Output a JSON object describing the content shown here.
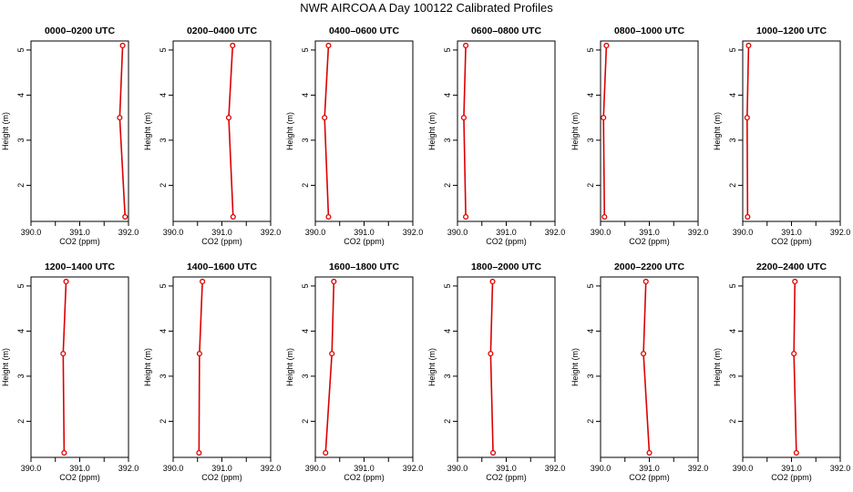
{
  "title": "NWR AIRCOA A  Day 100122  Calibrated Profiles",
  "colors": {
    "series": "#dd0000",
    "frame": "#000000"
  },
  "chart_data": {
    "type": "line",
    "xlabel": "CO2 (ppm)",
    "ylabel": "Height (m)",
    "xlim": [
      390.0,
      392.0
    ],
    "ylim": [
      1.2,
      5.2
    ],
    "xticks": [
      "390.0",
      "391.0",
      "392.0"
    ],
    "yticks": [
      "2",
      "3",
      "4",
      "5"
    ],
    "heights": [
      5.1,
      3.5,
      1.3
    ],
    "panels": [
      {
        "title": "0000–0200 UTC",
        "values": [
          391.88,
          391.82,
          391.93
        ]
      },
      {
        "title": "0200–0400 UTC",
        "values": [
          391.22,
          391.14,
          391.23
        ]
      },
      {
        "title": "0400–0600 UTC",
        "values": [
          390.27,
          390.19,
          390.27
        ]
      },
      {
        "title": "0600–0800 UTC",
        "values": [
          390.17,
          390.13,
          390.17
        ]
      },
      {
        "title": "0800–1000 UTC",
        "values": [
          390.12,
          390.06,
          390.08
        ]
      },
      {
        "title": "1000–1200 UTC",
        "values": [
          390.12,
          390.09,
          390.1
        ]
      },
      {
        "title": "1200–1400 UTC",
        "values": [
          390.72,
          390.66,
          390.68
        ]
      },
      {
        "title": "1400–1600 UTC",
        "values": [
          390.6,
          390.54,
          390.53
        ]
      },
      {
        "title": "1600–1800 UTC",
        "values": [
          390.38,
          390.34,
          390.21
        ]
      },
      {
        "title": "1800–2000 UTC",
        "values": [
          390.72,
          390.68,
          390.73
        ]
      },
      {
        "title": "2000–2200 UTC",
        "values": [
          390.93,
          390.88,
          391.0
        ]
      },
      {
        "title": "2200–2400 UTC",
        "values": [
          391.07,
          391.05,
          391.1
        ]
      }
    ]
  }
}
